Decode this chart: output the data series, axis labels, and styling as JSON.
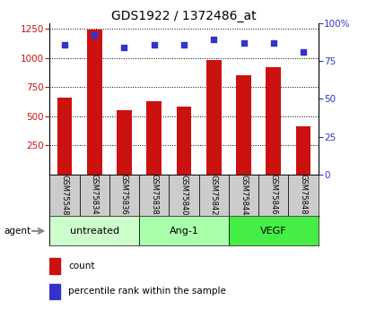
{
  "title": "GDS1922 / 1372486_at",
  "categories": [
    "GSM75548",
    "GSM75834",
    "GSM75836",
    "GSM75838",
    "GSM75840",
    "GSM75842",
    "GSM75844",
    "GSM75846",
    "GSM75848"
  ],
  "bar_values": [
    660,
    1245,
    550,
    630,
    585,
    980,
    855,
    920,
    415
  ],
  "percentile_values": [
    86,
    92,
    84,
    86,
    86,
    89,
    87,
    87,
    81
  ],
  "bar_color": "#cc1111",
  "percentile_color": "#3333cc",
  "groups": [
    {
      "label": "untreated",
      "indices": [
        0,
        1,
        2
      ],
      "color": "#ccffcc"
    },
    {
      "label": "Ang-1",
      "indices": [
        3,
        4,
        5
      ],
      "color": "#aaffaa"
    },
    {
      "label": "VEGF",
      "indices": [
        6,
        7,
        8
      ],
      "color": "#44ee44"
    }
  ],
  "ylim_left": [
    0,
    1300
  ],
  "ylim_right": [
    0,
    100
  ],
  "yticks_left": [
    250,
    500,
    750,
    1000,
    1250
  ],
  "yticks_right": [
    0,
    25,
    50,
    75,
    100
  ],
  "right_tick_labels": [
    "0",
    "25",
    "50",
    "75",
    "100%"
  ],
  "bar_width": 0.5,
  "agent_label": "agent",
  "legend_count_label": "count",
  "legend_percentile_label": "percentile rank within the sample",
  "sample_box_color": "#cccccc",
  "title_fontsize": 10,
  "tick_fontsize": 7.5,
  "label_fontsize": 7.5,
  "group_fontsize": 8
}
